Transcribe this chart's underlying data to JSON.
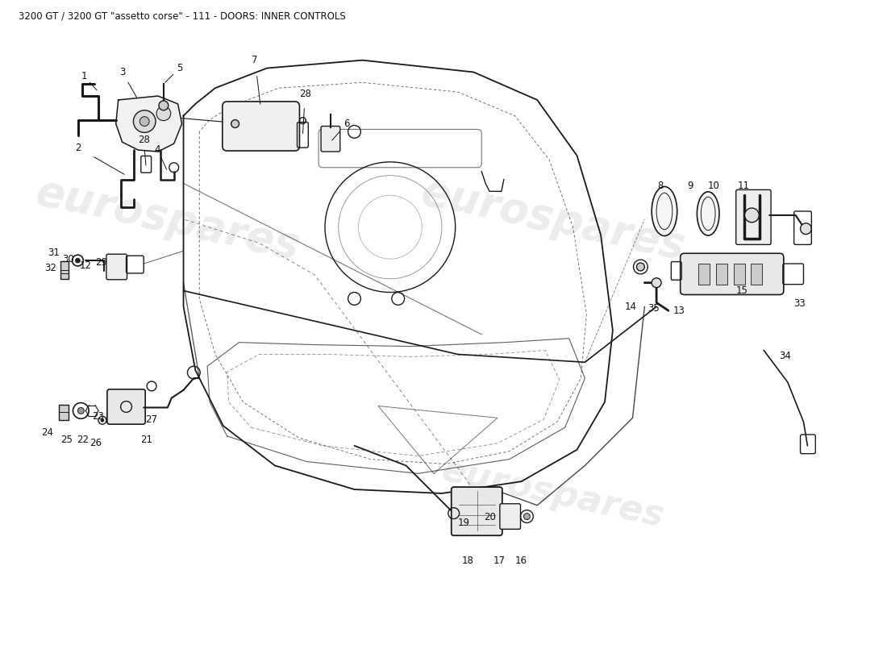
{
  "title": "3200 GT / 3200 GT \"assetto corse\" - 111 - DOORS: INNER CONTROLS",
  "title_fontsize": 8.5,
  "title_color": "#111111",
  "background_color": "#ffffff",
  "watermark_text": "eurospares",
  "watermark_color": "#bbbbbb",
  "watermark_alpha": 0.28,
  "line_color": "#1a1a1a",
  "line_width": 1.0,
  "label_fontsize": 8.5,
  "label_color": "#111111"
}
